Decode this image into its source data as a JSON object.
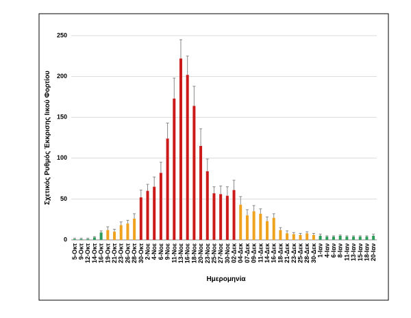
{
  "chart_data": {
    "type": "bar",
    "x_label": "Ημερομηνία",
    "y_label": "Σχετικός Ρυθμός Έκκρισης Ιικού Φορτίου",
    "categories": [
      "5-Οκτ",
      "9-Οκτ",
      "12-Οκτ",
      "14-Οκτ",
      "16-Οκτ",
      "19-Οκτ",
      "21-Οκτ",
      "23-Οκτ",
      "26-Οκτ",
      "28-Οκτ",
      "30-Οκτ",
      "2-Νοε",
      "4-Νοε",
      "6-Νοε",
      "9-Νοε",
      "11-Νοε",
      "13-Νοε",
      "16-Νοε",
      "18-Νοε",
      "20-Νοε",
      "23-Νοε",
      "25-Νοε",
      "27-Νοε",
      "30-Νοε",
      "02-Δεκ",
      "04-Δεκ",
      "07-Δεκ",
      "09-Δεκ",
      "11-Δεκ",
      "14-Δεκ",
      "16-Δεκ",
      "18-Δεκ",
      "21-Δεκ",
      "23-Δεκ",
      "25-Δεκ",
      "28-Δεκ",
      "30-Δεκ",
      "1-Ιαν",
      "4-Ιαν",
      "6-Ιαν",
      "8-Ιαν",
      "11-Ιαν",
      "13-Ιαν",
      "15-Ιαν",
      "18-Ιαν",
      "20-Ιαν"
    ],
    "values": [
      1,
      1,
      1,
      3,
      9,
      12,
      10,
      18,
      20,
      26,
      52,
      60,
      65,
      82,
      124,
      173,
      222,
      202,
      164,
      115,
      84,
      57,
      56,
      54,
      61,
      43,
      30,
      35,
      32,
      23,
      27,
      12,
      8,
      7,
      6,
      8,
      6,
      5,
      4,
      4,
      5,
      4,
      4,
      4,
      4,
      5
    ],
    "errors": [
      1,
      1,
      1,
      1,
      2,
      4,
      3,
      4,
      4,
      6,
      9,
      8,
      12,
      13,
      19,
      25,
      23,
      23,
      24,
      21,
      15,
      8,
      10,
      11,
      12,
      10,
      7,
      7,
      6,
      5,
      5,
      3,
      3,
      2,
      2,
      2,
      2,
      2,
      1,
      1,
      1,
      1,
      1,
      1,
      1,
      2
    ],
    "colors": [
      "#2e9c5a",
      "#2e9c5a",
      "#2e9c5a",
      "#2e9c5a",
      "#2e9c5a",
      "#eea21e",
      "#eea21e",
      "#eea21e",
      "#eea21e",
      "#eea21e",
      "#cc1a1a",
      "#cc1a1a",
      "#cc1a1a",
      "#cc1a1a",
      "#cc1a1a",
      "#cc1a1a",
      "#cc1a1a",
      "#cc1a1a",
      "#cc1a1a",
      "#cc1a1a",
      "#cc1a1a",
      "#cc1a1a",
      "#cc1a1a",
      "#cc1a1a",
      "#cc1a1a",
      "#eea21e",
      "#eea21e",
      "#eea21e",
      "#eea21e",
      "#eea21e",
      "#eea21e",
      "#eea21e",
      "#eea21e",
      "#eea21e",
      "#eea21e",
      "#eea21e",
      "#eea21e",
      "#2e9c5a",
      "#2e9c5a",
      "#2e9c5a",
      "#2e9c5a",
      "#2e9c5a",
      "#2e9c5a",
      "#2e9c5a",
      "#2e9c5a",
      "#2e9c5a"
    ],
    "ylim": [
      0,
      250
    ],
    "yticks": [
      0,
      50,
      100,
      150,
      200,
      250
    ],
    "grid": true
  }
}
